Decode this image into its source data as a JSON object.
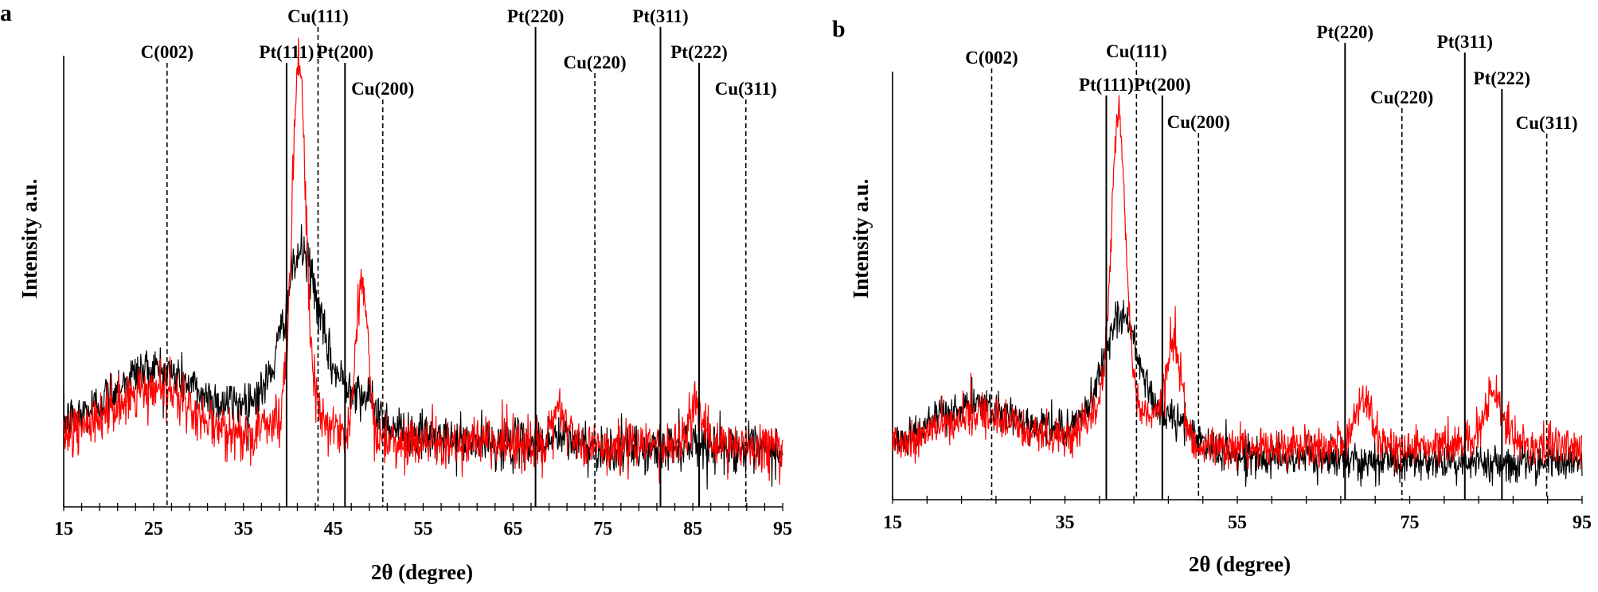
{
  "chart_data": [
    {
      "panel": "a",
      "type": "line",
      "xlabel": "2θ (degree)",
      "ylabel": "Intensity a.u.",
      "xlim": [
        15,
        95
      ],
      "x_ticks": [
        "15",
        "25",
        "35",
        "45",
        "55",
        "65",
        "75",
        "85",
        "95"
      ],
      "minor_tick_step": 2,
      "y_ticks_shown": false,
      "reference_lines": [
        {
          "label": "C(002)",
          "x": 26.5,
          "style": "dashed",
          "label_row": 3
        },
        {
          "label": "Pt(111)",
          "x": 39.8,
          "style": "solid",
          "label_row": 3
        },
        {
          "label": "Cu(111)",
          "x": 43.3,
          "style": "dashed",
          "label_row": 1
        },
        {
          "label": "Pt(200)",
          "x": 46.3,
          "style": "solid",
          "label_row": 3
        },
        {
          "label": "Cu(200)",
          "x": 50.5,
          "style": "dashed",
          "label_row": 4
        },
        {
          "label": "Pt(220)",
          "x": 67.5,
          "style": "solid",
          "label_row": 1
        },
        {
          "label": "Cu(220)",
          "x": 74.1,
          "style": "dashed",
          "label_row": 3
        },
        {
          "label": "Pt(311)",
          "x": 81.4,
          "style": "solid",
          "label_row": 1
        },
        {
          "label": "Pt(222)",
          "x": 85.7,
          "style": "solid",
          "label_row": 3
        },
        {
          "label": "Cu(311)",
          "x": 90.9,
          "style": "dashed",
          "label_row": 4
        }
      ],
      "series": [
        {
          "color": "#000000",
          "noise": 0.028,
          "base": 0.1,
          "decay": [
            0.06,
            80
          ],
          "peaks": [
            [
              25,
              0.14,
              4.5
            ],
            [
              41.5,
              0.32,
              1.8
            ],
            [
              41.5,
              0.11,
              6
            ],
            [
              47.5,
              0.05,
              2
            ],
            [
              70,
              0.02,
              2.5
            ],
            [
              85.5,
              0.02,
              2.5
            ]
          ],
          "points": [
            [
              15,
              0.15
            ],
            [
              20,
              0.18
            ],
            [
              25,
              0.28
            ],
            [
              30,
              0.19
            ],
            [
              35,
              0.21
            ],
            [
              38,
              0.32
            ],
            [
              41.5,
              0.62
            ],
            [
              44,
              0.35
            ],
            [
              47,
              0.27
            ],
            [
              50,
              0.18
            ],
            [
              55,
              0.14
            ],
            [
              65,
              0.12
            ],
            [
              70,
              0.14
            ],
            [
              75,
              0.11
            ],
            [
              85,
              0.13
            ],
            [
              90,
              0.11
            ],
            [
              95,
              0.09
            ]
          ]
        },
        {
          "color": "#ff0000",
          "noise": 0.03,
          "base": 0.11,
          "decay": [
            0.03,
            80
          ],
          "peaks": [
            [
              25,
              0.11,
              4
            ],
            [
              41.2,
              0.82,
              0.75
            ],
            [
              41.2,
              0.06,
              3
            ],
            [
              48.2,
              0.36,
              0.65
            ],
            [
              70.2,
              0.08,
              0.8
            ],
            [
              85.5,
              0.09,
              0.8
            ]
          ],
          "points": [
            [
              15,
              0.14
            ],
            [
              20,
              0.17
            ],
            [
              25,
              0.24
            ],
            [
              30,
              0.16
            ],
            [
              35,
              0.16
            ],
            [
              38,
              0.19
            ],
            [
              41.2,
              0.97
            ],
            [
              44,
              0.15
            ],
            [
              48.2,
              0.48
            ],
            [
              52,
              0.13
            ],
            [
              65,
              0.11
            ],
            [
              70.2,
              0.19
            ],
            [
              75,
              0.11
            ],
            [
              85.5,
              0.2
            ],
            [
              90,
              0.11
            ],
            [
              95,
              0.09
            ]
          ]
        }
      ]
    },
    {
      "panel": "b",
      "type": "line",
      "xlabel": "2θ (degree)",
      "ylabel": "Intensity a.u.",
      "xlim": [
        15,
        95
      ],
      "x_ticks": [
        "15",
        "35",
        "55",
        "75",
        "95"
      ],
      "minor_tick_step": 4,
      "y_ticks_shown": false,
      "reference_lines": [
        {
          "label": "C(002)",
          "x": 26.5,
          "style": "dashed",
          "label_row": 2
        },
        {
          "label": "Pt(111)",
          "x": 39.8,
          "style": "solid",
          "label_row": 3
        },
        {
          "label": "Cu(111)",
          "x": 43.3,
          "style": "dashed",
          "label_row": 2
        },
        {
          "label": "Pt(200)",
          "x": 46.3,
          "style": "solid",
          "label_row": 3
        },
        {
          "label": "Cu(200)",
          "x": 50.5,
          "style": "dashed",
          "label_row": 4
        },
        {
          "label": "Pt(220)",
          "x": 67.5,
          "style": "solid",
          "label_row": 1
        },
        {
          "label": "Cu(220)",
          "x": 74.1,
          "style": "dashed",
          "label_row": 3
        },
        {
          "label": "Pt(311)",
          "x": 81.4,
          "style": "solid",
          "label_row": 1
        },
        {
          "label": "Pt(222)",
          "x": 85.7,
          "style": "solid",
          "label_row": 2
        },
        {
          "label": "Cu(311)",
          "x": 90.9,
          "style": "dashed",
          "label_row": 4
        }
      ],
      "series": [
        {
          "color": "#000000",
          "noise": 0.024,
          "base": 0.07,
          "decay": [
            0.04,
            80
          ],
          "peaks": [
            [
              25,
              0.11,
              5
            ],
            [
              41.5,
              0.26,
              2
            ],
            [
              41.5,
              0.09,
              5.5
            ],
            [
              48,
              0.04,
              2
            ]
          ],
          "points": [
            [
              15,
              0.1
            ],
            [
              20,
              0.13
            ],
            [
              25,
              0.19
            ],
            [
              30,
              0.14
            ],
            [
              35,
              0.15
            ],
            [
              38,
              0.26
            ],
            [
              41.5,
              0.46
            ],
            [
              45,
              0.24
            ],
            [
              50,
              0.12
            ],
            [
              55,
              0.1
            ],
            [
              70,
              0.08
            ],
            [
              85,
              0.07
            ],
            [
              95,
              0.04
            ]
          ]
        },
        {
          "color": "#ff0000",
          "noise": 0.026,
          "base": 0.11,
          "decay": [
            0.0,
            80
          ],
          "peaks": [
            [
              25,
              0.08,
              4.5
            ],
            [
              41.2,
              0.72,
              0.8
            ],
            [
              41.2,
              0.14,
              3
            ],
            [
              47.6,
              0.26,
              0.9
            ],
            [
              69.5,
              0.12,
              1
            ],
            [
              84.7,
              0.13,
              1.3
            ]
          ],
          "points": [
            [
              15,
              0.12
            ],
            [
              20,
              0.15
            ],
            [
              25,
              0.19
            ],
            [
              30,
              0.14
            ],
            [
              35,
              0.15
            ],
            [
              38,
              0.27
            ],
            [
              41.2,
              0.96
            ],
            [
              44,
              0.26
            ],
            [
              47.6,
              0.37
            ],
            [
              52,
              0.12
            ],
            [
              60,
              0.11
            ],
            [
              69.5,
              0.23
            ],
            [
              75,
              0.11
            ],
            [
              84.7,
              0.24
            ],
            [
              90,
              0.11
            ],
            [
              95,
              0.1
            ]
          ]
        }
      ]
    }
  ]
}
